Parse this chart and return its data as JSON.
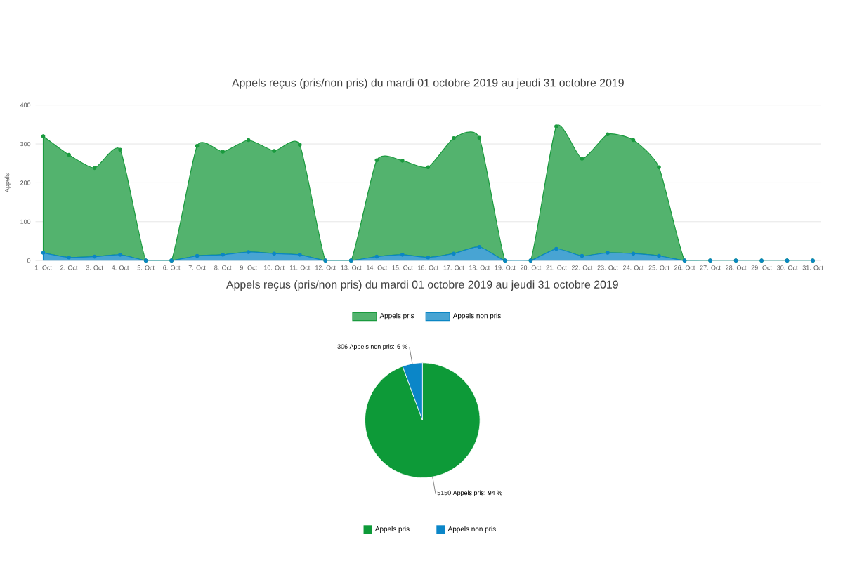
{
  "chart_data": [
    {
      "type": "area",
      "title": "Appels reçus (pris/non pris) du mardi 01 octobre 2019 au jeudi 31 octobre 2019",
      "ylabel": "Appels",
      "stacked": true,
      "categories": [
        "1. Oct",
        "2. Oct",
        "3. Oct",
        "4. Oct",
        "5. Oct",
        "6. Oct",
        "7. Oct",
        "8. Oct",
        "9. Oct",
        "10. Oct",
        "11. Oct",
        "12. Oct",
        "13. Oct",
        "14. Oct",
        "15. Oct",
        "16. Oct",
        "17. Oct",
        "18. Oct",
        "19. Oct",
        "20. Oct",
        "21. Oct",
        "22. Oct",
        "23. Oct",
        "24. Oct",
        "25. Oct",
        "26. Oct",
        "27. Oct",
        "28. Oct",
        "29. Oct",
        "30. Oct",
        "31. Oct"
      ],
      "series": [
        {
          "name": "Appels non pris",
          "color": "#0b86c4",
          "values": [
            20,
            8,
            10,
            15,
            0,
            0,
            12,
            15,
            22,
            18,
            15,
            0,
            0,
            10,
            15,
            8,
            18,
            35,
            0,
            0,
            30,
            12,
            20,
            18,
            12,
            0,
            0,
            0,
            0,
            0,
            0
          ]
        },
        {
          "name": "Appels pris",
          "color": "#1a9a3e",
          "values": [
            300,
            264,
            228,
            270,
            0,
            0,
            283,
            265,
            288,
            264,
            283,
            0,
            0,
            248,
            242,
            232,
            297,
            281,
            0,
            0,
            315,
            250,
            305,
            292,
            228,
            0,
            0,
            0,
            0,
            0,
            0
          ]
        }
      ],
      "ylim": [
        0,
        400
      ],
      "yticks": [
        0,
        100,
        200,
        300,
        400
      ],
      "grid": "y",
      "legend": "bottom",
      "marker": "circle"
    },
    {
      "type": "pie",
      "title": "Appels reçus (pris/non pris) du mardi 01 octobre 2019 au jeudi 31 octobre 2019",
      "categories": [
        "Appels pris",
        "Appels non pris"
      ],
      "values": [
        5150,
        306
      ],
      "colors": [
        "#0d9a38",
        "#0b86c8"
      ],
      "value_labels": [
        "5150 Appels pris: 94 %",
        "306 Appels non pris: 6 %"
      ],
      "legend": "bottom"
    }
  ]
}
